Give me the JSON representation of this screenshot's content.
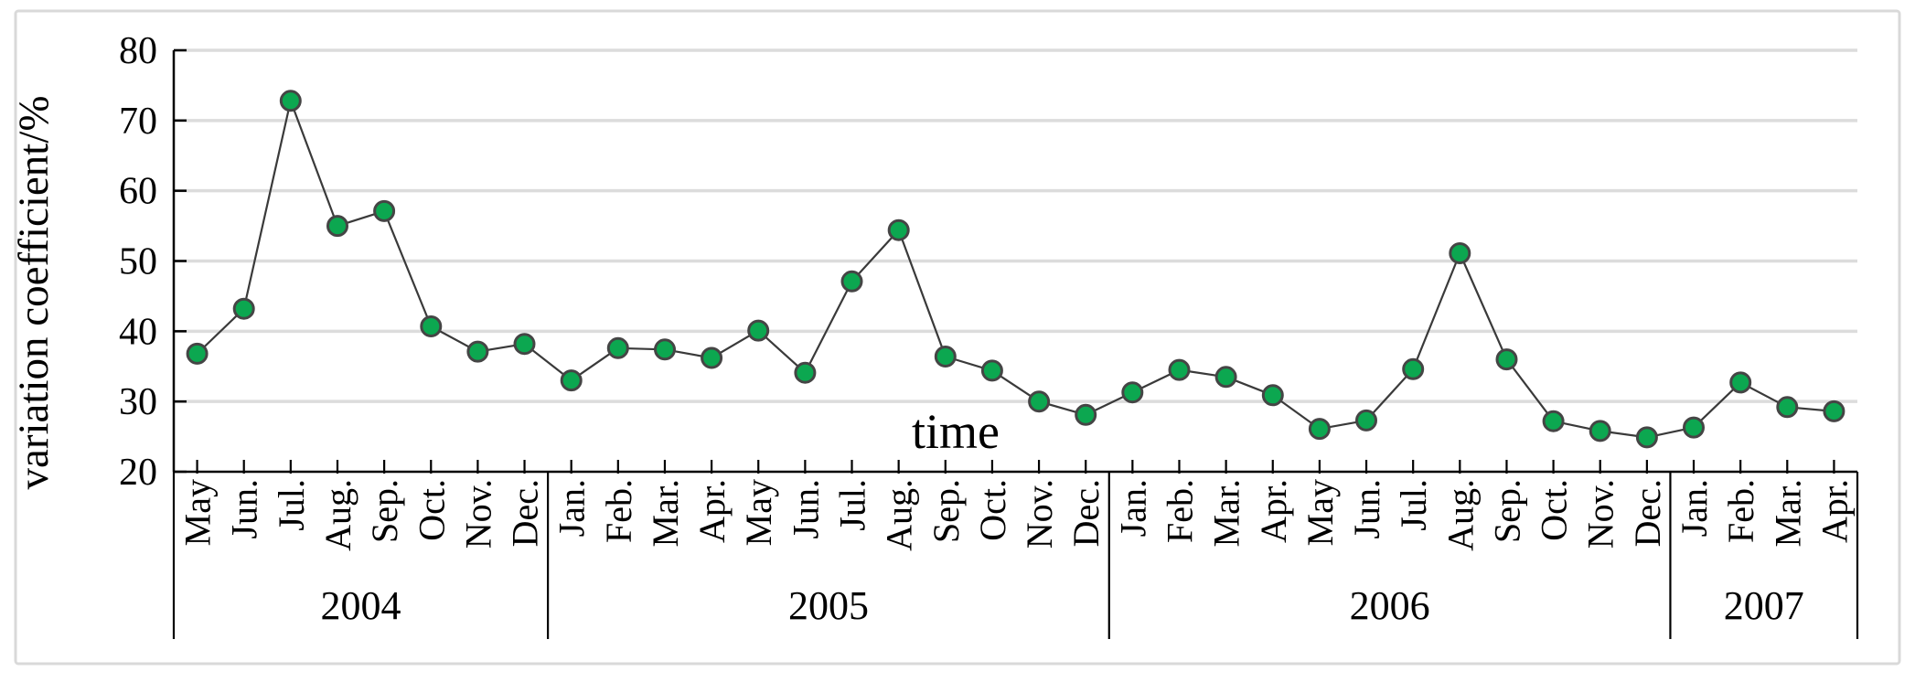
{
  "chart_data": {
    "type": "line",
    "title": "",
    "ylabel": "variation coefficient/%",
    "xlabel": "time",
    "ylim": [
      20,
      80
    ],
    "yticks": [
      20,
      30,
      40,
      50,
      60,
      70,
      80
    ],
    "grid": "horizontal",
    "legend": "none",
    "categories": [
      "May",
      "Jun.",
      "Jul.",
      "Aug.",
      "Sep.",
      "Oct.",
      "Nov.",
      "Dec.",
      "Jan.",
      "Feb.",
      "Mar.",
      "Apr.",
      "May",
      "Jun.",
      "Jul.",
      "Aug.",
      "Sep.",
      "Oct.",
      "Nov.",
      "Dec.",
      "Jan.",
      "Feb.",
      "Mar.",
      "Apr.",
      "May",
      "Jun.",
      "Jul.",
      "Aug.",
      "Sep.",
      "Oct.",
      "Nov.",
      "Dec.",
      "Jan.",
      "Feb.",
      "Mar.",
      "Apr."
    ],
    "year_groups": [
      {
        "label": "2004",
        "count": 8
      },
      {
        "label": "2005",
        "count": 12
      },
      {
        "label": "2006",
        "count": 12
      },
      {
        "label": "2007",
        "count": 4
      }
    ],
    "series": [
      {
        "name": "variation coefficient",
        "values": [
          36.8,
          43.2,
          72.8,
          55.0,
          57.1,
          40.7,
          37.1,
          38.2,
          33.0,
          37.6,
          37.4,
          36.2,
          40.1,
          34.1,
          47.1,
          54.4,
          36.4,
          34.4,
          30.0,
          28.1,
          31.3,
          34.5,
          33.5,
          30.9,
          26.1,
          27.3,
          34.6,
          51.1,
          36.0,
          27.2,
          25.8,
          24.9,
          26.3,
          32.7,
          29.2,
          28.6
        ]
      }
    ],
    "colors": {
      "marker_fill": "#0ca750",
      "marker_edge": "#454545",
      "line": "#3a3a3a",
      "gridline": "#dcdcdc",
      "axis": "#000000",
      "frame_border": "#d9d9d9",
      "background": "#ffffff"
    }
  }
}
